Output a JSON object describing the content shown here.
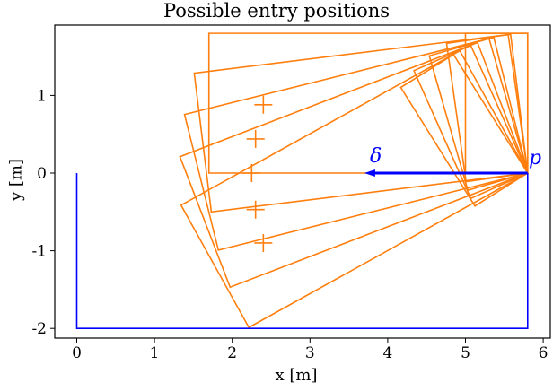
{
  "chart_data": {
    "type": "line",
    "title": "Possible entry positions",
    "xlabel": "x [m]",
    "ylabel": "y [m]",
    "xlim": [
      -0.28,
      6.1
    ],
    "ylim": [
      -2.1,
      1.92
    ],
    "xticks": [
      0,
      1,
      2,
      3,
      4,
      5,
      6
    ],
    "yticks": [
      1,
      0,
      -1,
      -2
    ],
    "ytick_labels": [
      "1",
      "0",
      "-1",
      "-2"
    ],
    "grid": false,
    "colors": {
      "room": "#0000ff",
      "entries": "#ff7f0e",
      "axes": "#000000"
    },
    "room_outline": {
      "name": "room",
      "points": [
        [
          0,
          0
        ],
        [
          0,
          -2
        ],
        [
          5.8,
          -2
        ],
        [
          5.8,
          0
        ]
      ]
    },
    "point_p": {
      "label": "p",
      "x": 5.8,
      "y": 0
    },
    "delta_arrow": {
      "label": "δ",
      "from": [
        5.8,
        0
      ],
      "to": [
        3.7,
        0
      ]
    },
    "long_rectangles": {
      "length": 4.1,
      "width": 1.8,
      "pivot": [
        5.8,
        0
      ],
      "angles_deg": [
        0,
        7,
        14,
        21,
        29
      ]
    },
    "short_rectangles": {
      "length": 0.8,
      "width": 1.8,
      "pivot": [
        5.8,
        0
      ],
      "angles_deg": [
        0,
        8,
        16,
        24,
        32
      ]
    },
    "entry_centers": [
      [
        2.4,
        0.88
      ],
      [
        2.3,
        0.44
      ],
      [
        2.25,
        0.0
      ],
      [
        2.3,
        -0.47
      ],
      [
        2.4,
        -0.9
      ]
    ]
  }
}
